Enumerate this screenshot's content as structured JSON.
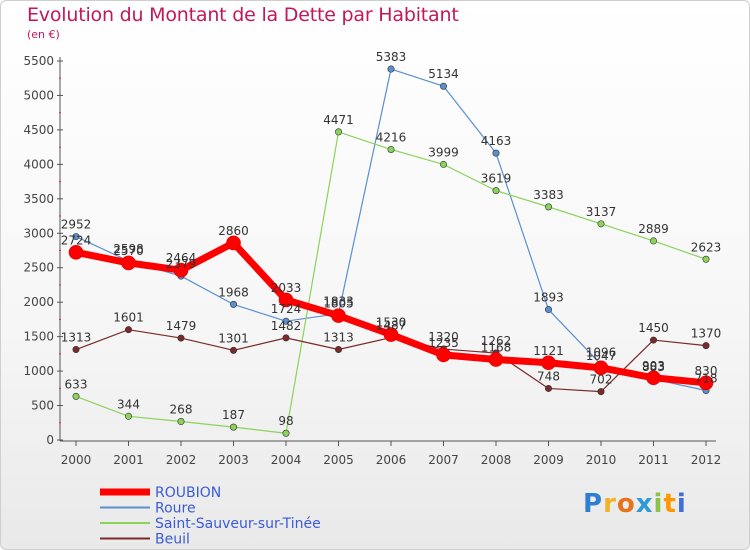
{
  "title": "Evolution du Montant de la Dette par Habitant",
  "subtitle": "(en €)",
  "brand": {
    "text": "Proxiti",
    "letters": [
      "P",
      "r",
      "o",
      "x",
      "i",
      "t",
      "i"
    ],
    "colors": [
      "#2f7fd1",
      "#f0b429",
      "#e8731a",
      "#2e9bd6",
      "#8bc34a",
      "#ff9800",
      "#3f6fd9"
    ]
  },
  "chart_data": {
    "type": "line",
    "title": "Evolution du Montant de la Dette par Habitant",
    "subtitle": "(en €)",
    "x": [
      "2000",
      "2001",
      "2002",
      "2003",
      "2004",
      "2005",
      "2006",
      "2007",
      "2008",
      "2009",
      "2010",
      "2011",
      "2012"
    ],
    "ylim": [
      0,
      5500
    ],
    "yticks": [
      0,
      500,
      1000,
      1500,
      2000,
      2500,
      3000,
      3500,
      4000,
      4500,
      5000,
      5500
    ],
    "grid": false,
    "legend_position": "bottom-left",
    "series": [
      {
        "name": "ROUBION",
        "color": "#ff0000",
        "width": 7,
        "values": [
          2724,
          2570,
          2464,
          2860,
          2033,
          1805,
          1530,
          1235,
          1168,
          1121,
          1047,
          903,
          830
        ]
      },
      {
        "name": "Roure",
        "color": "#5b8fd0",
        "width": 1.2,
        "values": [
          2952,
          2598,
          2379,
          1968,
          1724,
          1833,
          5383,
          5134,
          4163,
          1893,
          1096,
          883,
          718
        ]
      },
      {
        "name": "Saint-Sauveur-sur-Tinée",
        "color": "#8bd35a",
        "width": 1.2,
        "values": [
          633,
          344,
          268,
          187,
          98,
          4471,
          4216,
          3999,
          3619,
          3383,
          3137,
          2889,
          2623
        ]
      },
      {
        "name": "Beuil",
        "color": "#7a2a2a",
        "width": 1.2,
        "values": [
          1313,
          1601,
          1479,
          1301,
          1482,
          1313,
          1487,
          1320,
          1262,
          748,
          702,
          1450,
          1370
        ]
      }
    ]
  }
}
